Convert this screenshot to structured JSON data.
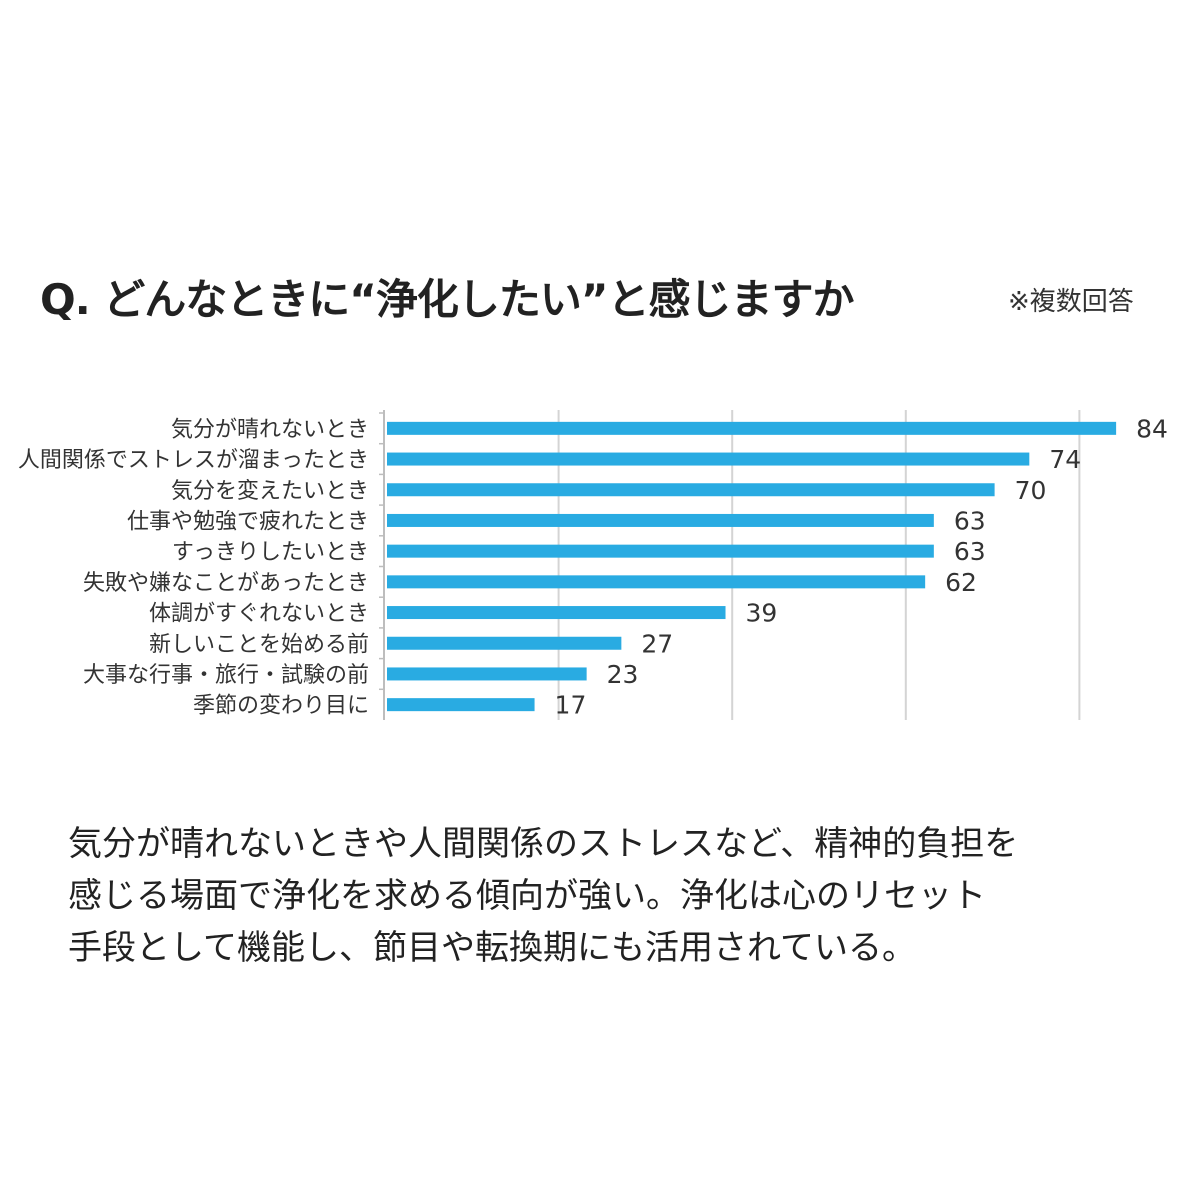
{
  "title": "Q. どんなときに“浄化したい”と感じますか",
  "note": "※複数回答",
  "chart_data": {
    "type": "bar",
    "orientation": "horizontal",
    "categories": [
      "気分が晴れないとき",
      "人間関係でストレスが溜まったとき",
      "気分を変えたいとき",
      "仕事や勉強で疲れたとき",
      "すっきりしたいとき",
      "失敗や嫌なことがあったとき",
      "体調がすぐれないとき",
      "新しいことを始める前",
      "大事な行事・旅行・試験の前",
      "季節の変わり目に"
    ],
    "values": [
      84,
      74,
      70,
      63,
      63,
      62,
      39,
      27,
      23,
      17
    ],
    "xlim": [
      0,
      80
    ],
    "grid": true,
    "bar_color": "#29abe2"
  },
  "summary": {
    "lines": [
      "気分が晴れないときや人間関係のストレスなど、精神的負担を",
      "感じる場面で浄化を求める傾向が強い。浄化は心のリセット",
      "手段として機能し、節目や転換期にも活用されている。"
    ]
  }
}
